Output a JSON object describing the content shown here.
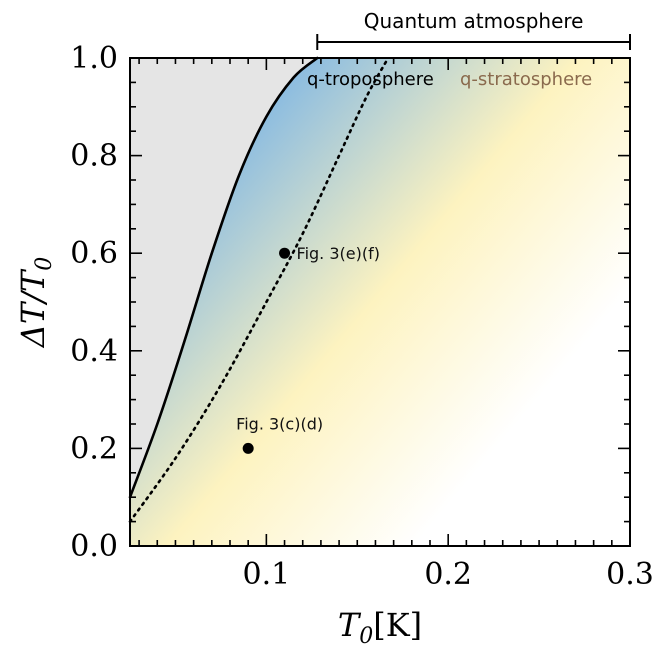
{
  "chart_data": {
    "type": "line",
    "xlabel": "T_0[K]",
    "ylabel": "ΔT/T_0",
    "xlim": [
      0.025,
      0.3
    ],
    "ylim": [
      0.0,
      1.0
    ],
    "x_ticks": [
      0.1,
      0.2,
      0.3
    ],
    "x_tick_labels": [
      "0.1",
      "0.2",
      "0.3"
    ],
    "y_ticks": [
      0.0,
      0.2,
      0.4,
      0.6,
      0.8,
      1.0
    ],
    "y_tick_labels": [
      "0.0",
      "0.2",
      "0.4",
      "0.6",
      "0.8",
      "1.0"
    ],
    "grid": false,
    "series": [
      {
        "style": "solid",
        "color": "#000000",
        "x": [
          0.025,
          0.04,
          0.055,
          0.07,
          0.085,
          0.1,
          0.115,
          0.128
        ],
        "y": [
          0.1,
          0.25,
          0.42,
          0.6,
          0.76,
          0.88,
          0.96,
          1.0
        ]
      },
      {
        "style": "dotted",
        "color": "#000000",
        "x": [
          0.025,
          0.05,
          0.075,
          0.1,
          0.12,
          0.14,
          0.155,
          0.167
        ],
        "y": [
          0.05,
          0.18,
          0.33,
          0.5,
          0.64,
          0.8,
          0.92,
          1.0
        ]
      }
    ],
    "points": [
      {
        "x": 0.11,
        "y": 0.6,
        "label": "Fig. 3(e)(f)"
      },
      {
        "x": 0.09,
        "y": 0.2,
        "label": "Fig. 3(c)(d)"
      }
    ],
    "regions": {
      "troposphere_label": "q-troposphere",
      "stratosphere_label": "q-stratosphere",
      "troposphere_color": "#7fb6e4",
      "stratosphere_color": "#fdf3c0",
      "excluded_color": "#e5e5e5"
    },
    "bracket": {
      "label": "Quantum atmosphere",
      "x_start": 0.128,
      "x_end": 0.3
    }
  }
}
